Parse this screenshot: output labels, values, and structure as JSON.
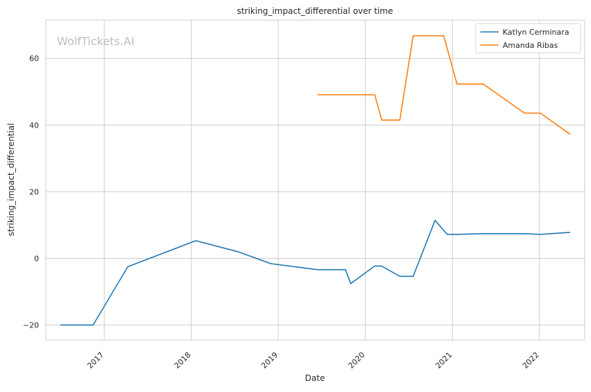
{
  "watermark": "WolfTickets.AI",
  "chart_data": {
    "type": "line",
    "title": "striking_impact_differential over time",
    "xlabel": "Date",
    "ylabel": "striking_impact_differential",
    "x_type": "date",
    "xlim": [
      "2016-05-01",
      "2022-07-10"
    ],
    "ylim": [
      -24.5,
      71.5
    ],
    "x_ticks": [
      {
        "label": "2017",
        "date": "2017-01-01"
      },
      {
        "label": "2018",
        "date": "2018-01-01"
      },
      {
        "label": "2019",
        "date": "2019-01-01"
      },
      {
        "label": "2020",
        "date": "2020-01-01"
      },
      {
        "label": "2021",
        "date": "2021-01-01"
      },
      {
        "label": "2022",
        "date": "2022-01-01"
      }
    ],
    "y_ticks": [
      -20,
      0,
      20,
      40,
      60
    ],
    "y_tick_labels": [
      "−20",
      "0",
      "20",
      "40",
      "60"
    ],
    "grid": true,
    "legend_position": "top-right",
    "series": [
      {
        "name": "Katlyn Cerminara",
        "color": "#1f77b4",
        "points": [
          {
            "x": "2016-07-01",
            "y": -20.0
          },
          {
            "x": "2016-11-15",
            "y": -20.0
          },
          {
            "x": "2017-04-10",
            "y": -2.5
          },
          {
            "x": "2018-01-20",
            "y": 5.3
          },
          {
            "x": "2018-07-20",
            "y": 1.9
          },
          {
            "x": "2018-12-01",
            "y": -1.6
          },
          {
            "x": "2019-06-15",
            "y": -3.4
          },
          {
            "x": "2019-10-10",
            "y": -3.4
          },
          {
            "x": "2019-11-01",
            "y": -7.6
          },
          {
            "x": "2020-02-10",
            "y": -2.3
          },
          {
            "x": "2020-03-10",
            "y": -2.3
          },
          {
            "x": "2020-05-25",
            "y": -5.4
          },
          {
            "x": "2020-07-20",
            "y": -5.4
          },
          {
            "x": "2020-10-20",
            "y": 11.4
          },
          {
            "x": "2020-12-10",
            "y": 7.2
          },
          {
            "x": "2021-01-20",
            "y": 7.2
          },
          {
            "x": "2021-05-10",
            "y": 7.4
          },
          {
            "x": "2021-10-30",
            "y": 7.4
          },
          {
            "x": "2022-01-05",
            "y": 7.2
          },
          {
            "x": "2022-05-10",
            "y": 7.8
          }
        ]
      },
      {
        "name": "Amanda Ribas",
        "color": "#ff7f0e",
        "points": [
          {
            "x": "2019-06-15",
            "y": 49.1
          },
          {
            "x": "2020-02-10",
            "y": 49.1
          },
          {
            "x": "2020-03-10",
            "y": 41.5
          },
          {
            "x": "2020-05-25",
            "y": 41.5
          },
          {
            "x": "2020-07-20",
            "y": 66.8
          },
          {
            "x": "2020-11-25",
            "y": 66.8
          },
          {
            "x": "2021-01-20",
            "y": 52.3
          },
          {
            "x": "2021-05-10",
            "y": 52.3
          },
          {
            "x": "2021-10-30",
            "y": 43.6
          },
          {
            "x": "2022-01-05",
            "y": 43.6
          },
          {
            "x": "2022-05-10",
            "y": 37.2
          }
        ]
      }
    ]
  }
}
